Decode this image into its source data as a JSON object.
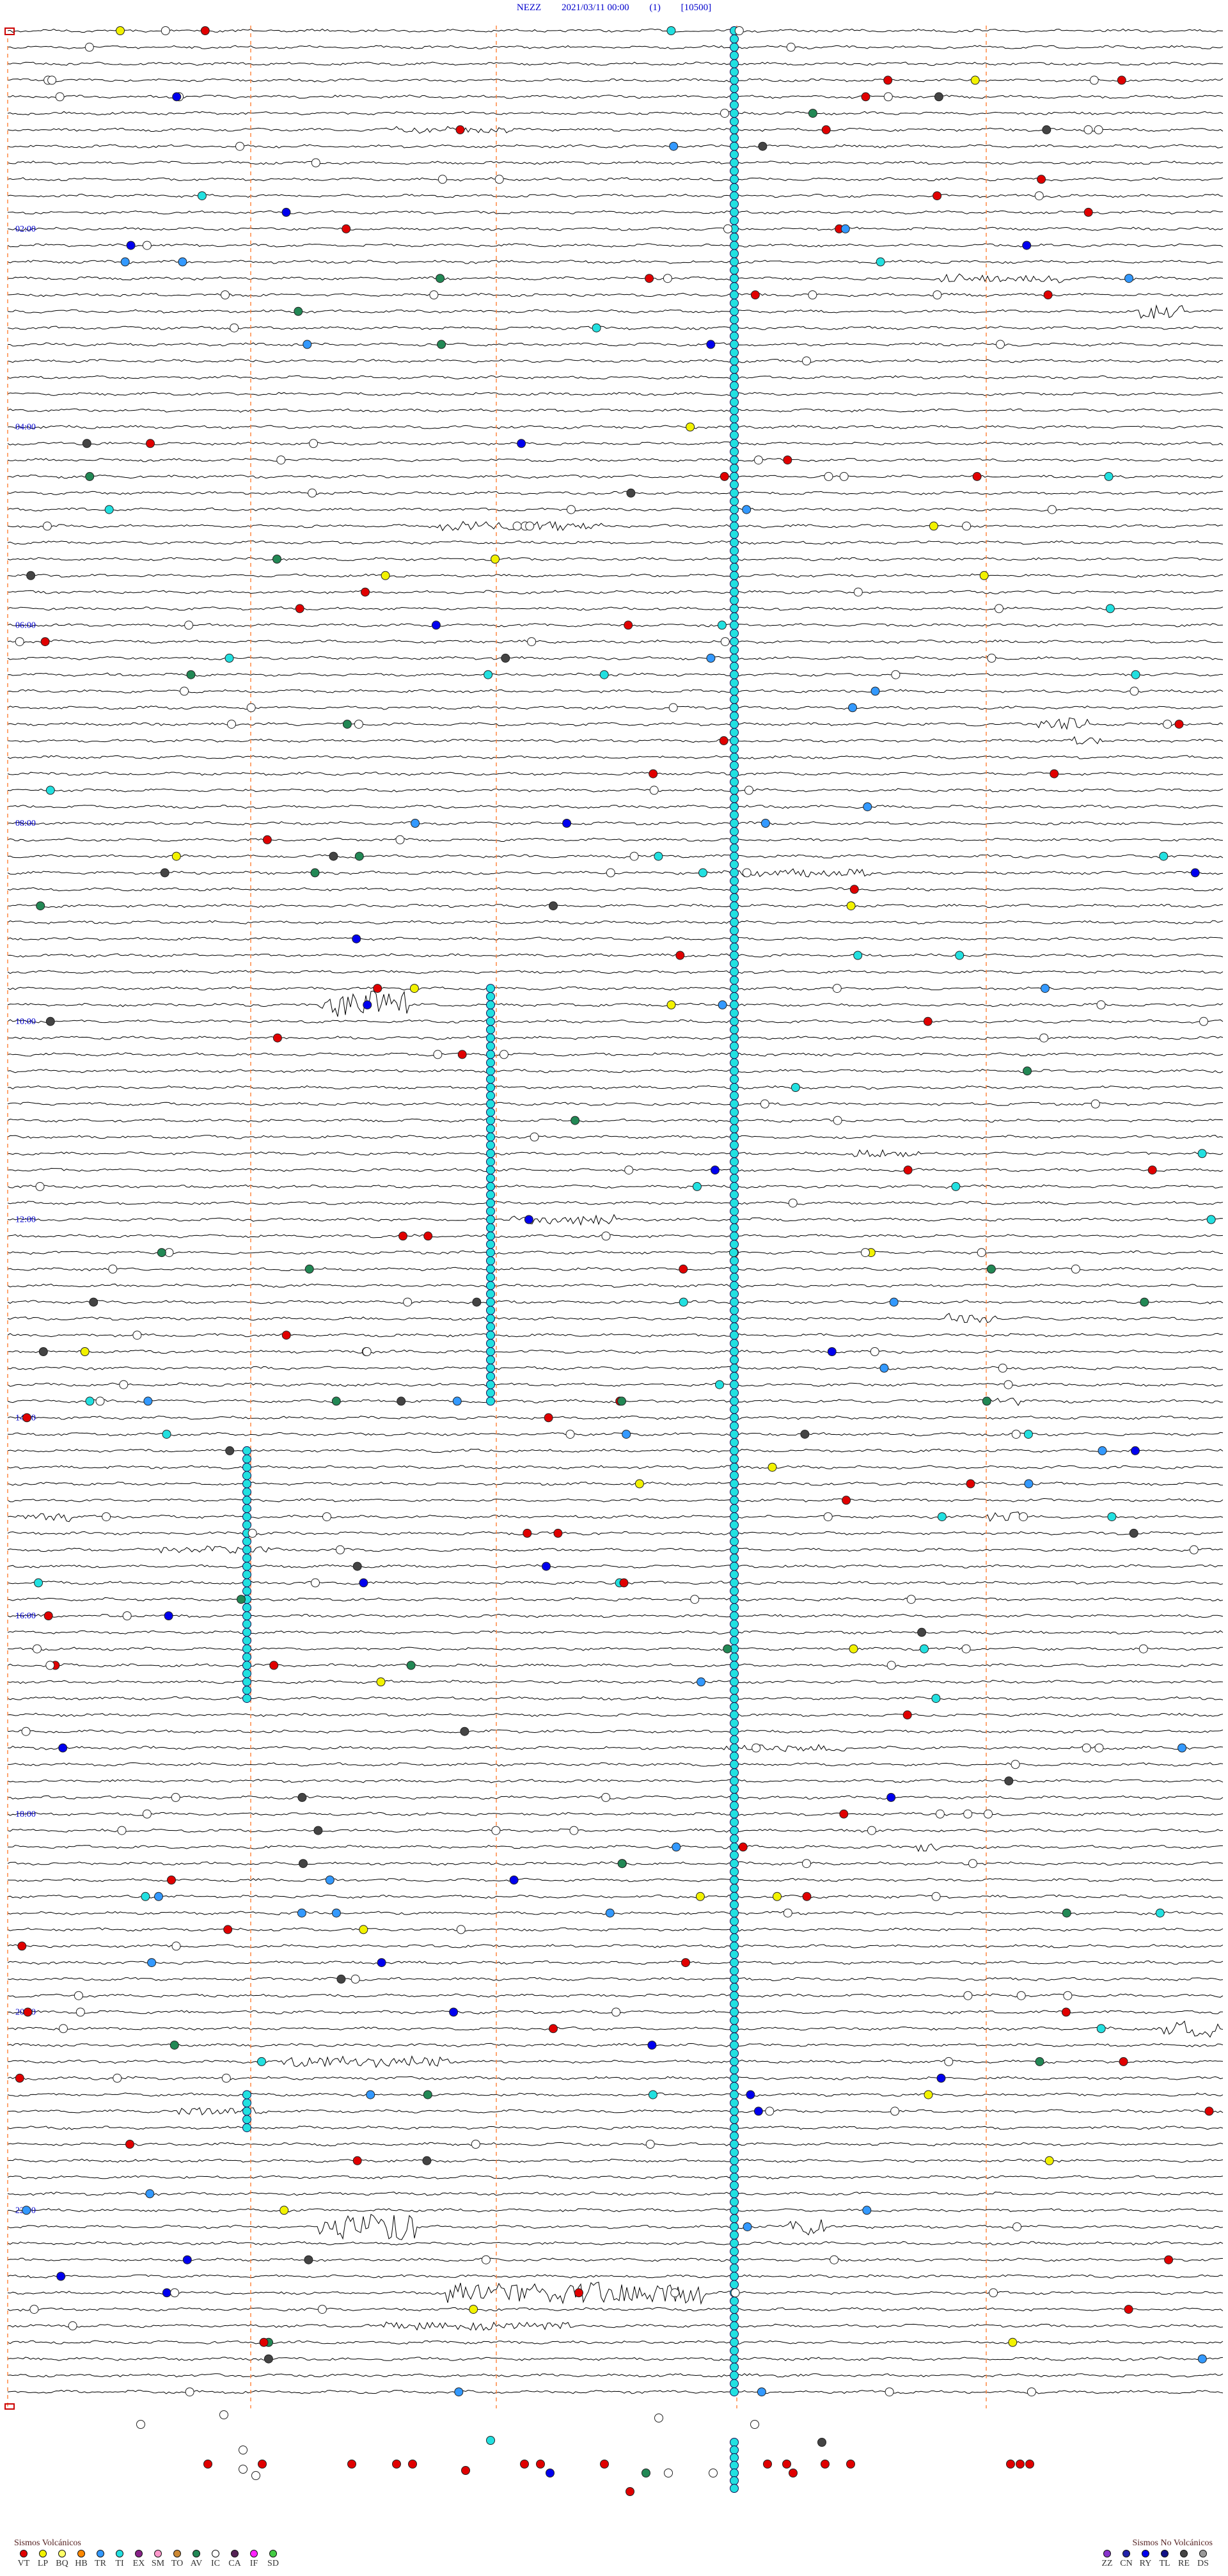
{
  "header": {
    "station": "NEZZ",
    "datetime": "2021/03/11 00:00",
    "component": "(1)",
    "code": "[10500]"
  },
  "hour_labels": [
    "02:00",
    "04:00",
    "06:00",
    "08:00",
    "10:00",
    "12:00",
    "14:00",
    "16:00",
    "18:00",
    "20:00",
    "22:00"
  ],
  "legend_volcanic": {
    "title": "Sismos Volcánicos",
    "items": [
      {
        "code": "VT",
        "color": "#e00000"
      },
      {
        "code": "LP",
        "color": "#f2f200"
      },
      {
        "code": "BQ",
        "color": "#ffff66"
      },
      {
        "code": "HB",
        "color": "#ff8800"
      },
      {
        "code": "TR",
        "color": "#3399ff"
      },
      {
        "code": "TI",
        "color": "#22e0e0"
      },
      {
        "code": "EX",
        "color": "#882288"
      },
      {
        "code": "SM",
        "color": "#ff99cc"
      },
      {
        "code": "TO",
        "color": "#cc8833"
      },
      {
        "code": "AV",
        "color": "#228855"
      },
      {
        "code": "IC",
        "color": "#ffffff"
      },
      {
        "code": "CA",
        "color": "#552255"
      },
      {
        "code": "IF",
        "color": "#ff22ff"
      },
      {
        "code": "SD",
        "color": "#44cc44"
      }
    ]
  },
  "legend_nonvolcanic": {
    "title": "Sismos No Volcánicos",
    "items": [
      {
        "code": "ZZ",
        "color": "#8833cc"
      },
      {
        "code": "CN",
        "color": "#2222aa"
      },
      {
        "code": "RY",
        "color": "#0000ee"
      },
      {
        "code": "TL",
        "color": "#111188"
      },
      {
        "code": "RE",
        "color": "#444444"
      },
      {
        "code": "DS",
        "color": "#999999"
      }
    ]
  }
}
